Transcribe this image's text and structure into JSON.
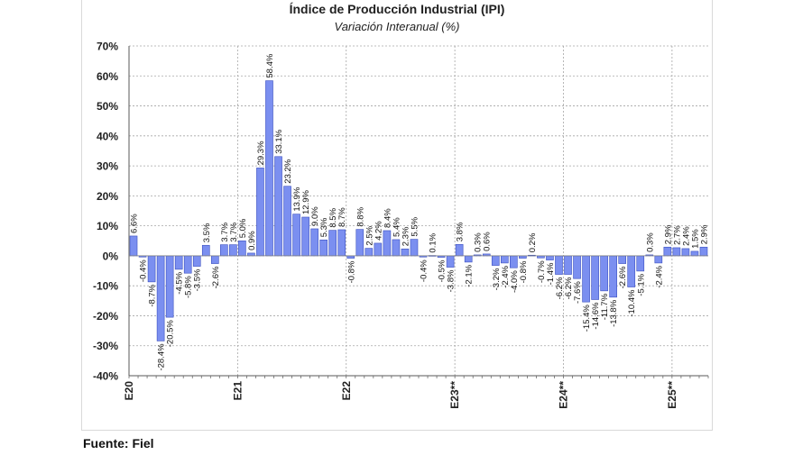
{
  "chart_data": {
    "type": "bar",
    "title": "Índice de Producción Industrial (IPI)",
    "subtitle": "Variación Interanual (%)",
    "ylim": [
      -40,
      70
    ],
    "yticks": [
      "-40%",
      "-30%",
      "-20%",
      "-10%",
      "0%",
      "10%",
      "20%",
      "30%",
      "40%",
      "50%",
      "60%",
      "70%"
    ],
    "grid": true,
    "x_tick_labels": [
      {
        "index": 0,
        "label": "E20"
      },
      {
        "index": 12,
        "label": "E21"
      },
      {
        "index": 24,
        "label": "E22"
      },
      {
        "index": 36,
        "label": "E23**"
      },
      {
        "index": 48,
        "label": "E24**"
      },
      {
        "index": 60,
        "label": "E25**"
      }
    ],
    "values": [
      6.6,
      -0.4,
      -8.7,
      -28.4,
      -20.5,
      -4.5,
      -5.8,
      -3.5,
      3.5,
      -2.6,
      3.7,
      3.7,
      5.0,
      0.9,
      29.3,
      58.4,
      33.1,
      23.2,
      13.9,
      12.9,
      9.0,
      5.3,
      8.5,
      8.7,
      -0.8,
      8.8,
      2.5,
      4.2,
      8.4,
      5.4,
      2.3,
      5.5,
      -0.4,
      0.1,
      -0.5,
      -3.8,
      3.8,
      -2.1,
      0.3,
      0.6,
      -3.2,
      -2.4,
      -4.0,
      -0.8,
      0.2,
      -0.7,
      -1.4,
      -6.2,
      -6.2,
      -7.6,
      -15.4,
      -14.6,
      -11.7,
      -13.8,
      -2.6,
      -10.4,
      -5.1,
      0.3,
      -2.4,
      2.9,
      2.7,
      2.4,
      1.5,
      2.9
    ],
    "data_labels": [
      "6.6%",
      "-0.4%",
      "-8.7%",
      "-28.4%",
      "-20.5%",
      "-4.5%",
      "-5.8%",
      "-3.5%",
      "3.5%",
      "-2.6%",
      "3.7%",
      "3.7%",
      "5.0%",
      "0.9%",
      "29.3%",
      "58.4%",
      "33.1%",
      "23.2%",
      "13.9%",
      "12.9%",
      "9.0%",
      "5.3%",
      "8.5%",
      "8.7%",
      "-0.8%",
      "8.8%",
      "2.5%",
      "4.2%",
      "8.4%",
      "5.4%",
      "2.3%",
      "5.5%",
      "-0.4%",
      "0.1%",
      "-0.5%",
      "-3.8%",
      "3.8%",
      "-2.1%",
      "0.3%",
      "0.6%",
      "-3.2%",
      "-2.4%",
      "-4.0%",
      "-0.8%",
      "0.2%",
      "-0.7%",
      "-1.4%",
      "-6.2%",
      "-6.2%",
      "-7.6%",
      "-15.4%",
      "-14.6%",
      "-11.7%",
      "-13.8%",
      "-2.6%",
      "-10.4%",
      "-5.1%",
      "0.3%",
      "-2.4%",
      "2.9%",
      "2.7%",
      "2.4%",
      "1.5%",
      "2.9%"
    ],
    "bar_color": "#7b8ff0",
    "bar_stroke": "#3a4fc0"
  },
  "source": "Fuente: Fiel"
}
